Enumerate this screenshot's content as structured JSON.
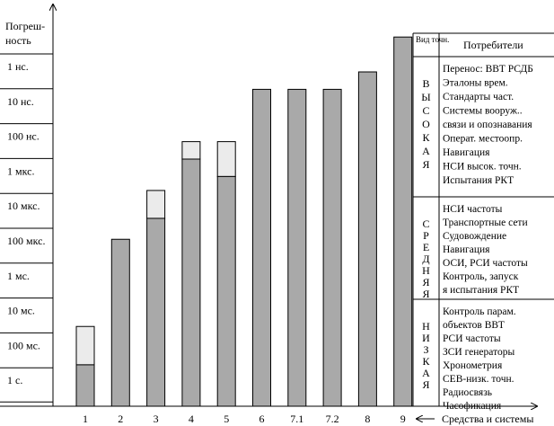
{
  "chart_data": {
    "type": "bar",
    "ylabel": [
      "Погреш-",
      "ность"
    ],
    "xlabel": "Средства и системы",
    "y_ticks": [
      "1 нс.",
      "10 нс.",
      "100 нс.",
      "1 мкс.",
      "10 мкс.",
      "100 мкс.",
      "1 мс.",
      "10 мс.",
      "100 мс.",
      "1 с."
    ],
    "y_scale": "log (accuracy levels, top = 1 нс, bottom = 1 с)",
    "categories": [
      "1",
      "2",
      "3",
      "4",
      "5",
      "6",
      "7.1",
      "7.2",
      "8",
      "9"
    ],
    "series": [
      {
        "values": [
          8.4,
          4.8,
          4.2,
          2.5,
          3.0,
          0.5,
          0.5,
          0.5,
          0.0,
          -1.0
        ]
      },
      {
        "values": [
          7.3,
          4.8,
          3.4,
          2.0,
          2.0,
          1.0,
          0.5,
          1.6,
          0.9,
          -1.0
        ]
      }
    ],
    "colors": {
      "bar_dark": "#a9a9a9",
      "bar_light": "#ebebeb",
      "outline": "#000000"
    },
    "table": {
      "header_level": "Вид точн.",
      "header_consumers": "Потребители",
      "groups": [
        {
          "level": "ВЫСОКАЯ",
          "consumers": [
            "Перенос: ВВТ РСДБ",
            "Эталоны врем.",
            "Стандарты част.",
            "Системы вооруж..",
            "связи и опознавания",
            "Операт. местоопр.",
            "Навигация",
            "НСИ высок. точн.",
            "Испытания РКТ"
          ]
        },
        {
          "level": "СРЕДНЯЯ",
          "consumers": [
            "НСИ частоты",
            "Транспортные сети",
            "Судовождение",
            "Навигация",
            "ОСИ, РСИ частоты",
            "Контроль, запуск",
            "я испытания РКТ"
          ]
        },
        {
          "level": "НИЗКАЯ",
          "consumers": [
            "Контроль парам.",
            "объектов ВВТ",
            "РСИ частоты",
            "ЗСИ генераторы",
            "Хронометрия",
            "СЕВ-низк. точн.",
            "Радиосвязь",
            "Часофикация"
          ]
        }
      ]
    }
  }
}
